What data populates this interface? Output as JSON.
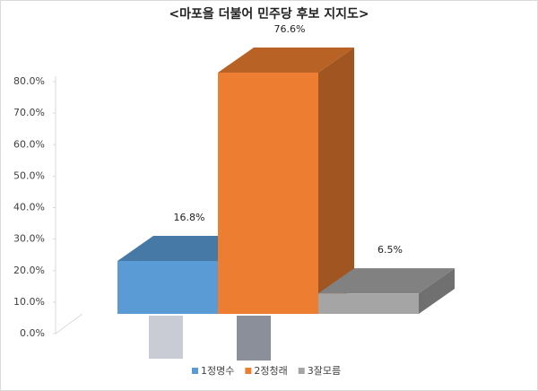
{
  "chart_data": {
    "type": "bar3d",
    "title": "<마포을 더불어 민주당 후보 지지도>",
    "categories": [
      "1정명수",
      "2정청래",
      "3잘모름"
    ],
    "values": [
      16.8,
      76.6,
      6.5
    ],
    "value_labels": [
      "16.8%",
      "76.6%",
      "6.5%"
    ],
    "colors": [
      "#5b9bd5",
      "#ed7d31",
      "#a5a5a5"
    ],
    "ylim": [
      0,
      80
    ],
    "yticks": [
      {
        "value": 0,
        "label": "0.0%"
      },
      {
        "value": 10,
        "label": "10.0%"
      },
      {
        "value": 20,
        "label": "20.0%"
      },
      {
        "value": 30,
        "label": "30.0%"
      },
      {
        "value": 40,
        "label": "40.0%"
      },
      {
        "value": 50,
        "label": "50.0%"
      },
      {
        "value": 60,
        "label": "60.0%"
      },
      {
        "value": 70,
        "label": "70.0%"
      },
      {
        "value": 80,
        "label": "80.0%"
      }
    ],
    "legend": "bottom"
  }
}
